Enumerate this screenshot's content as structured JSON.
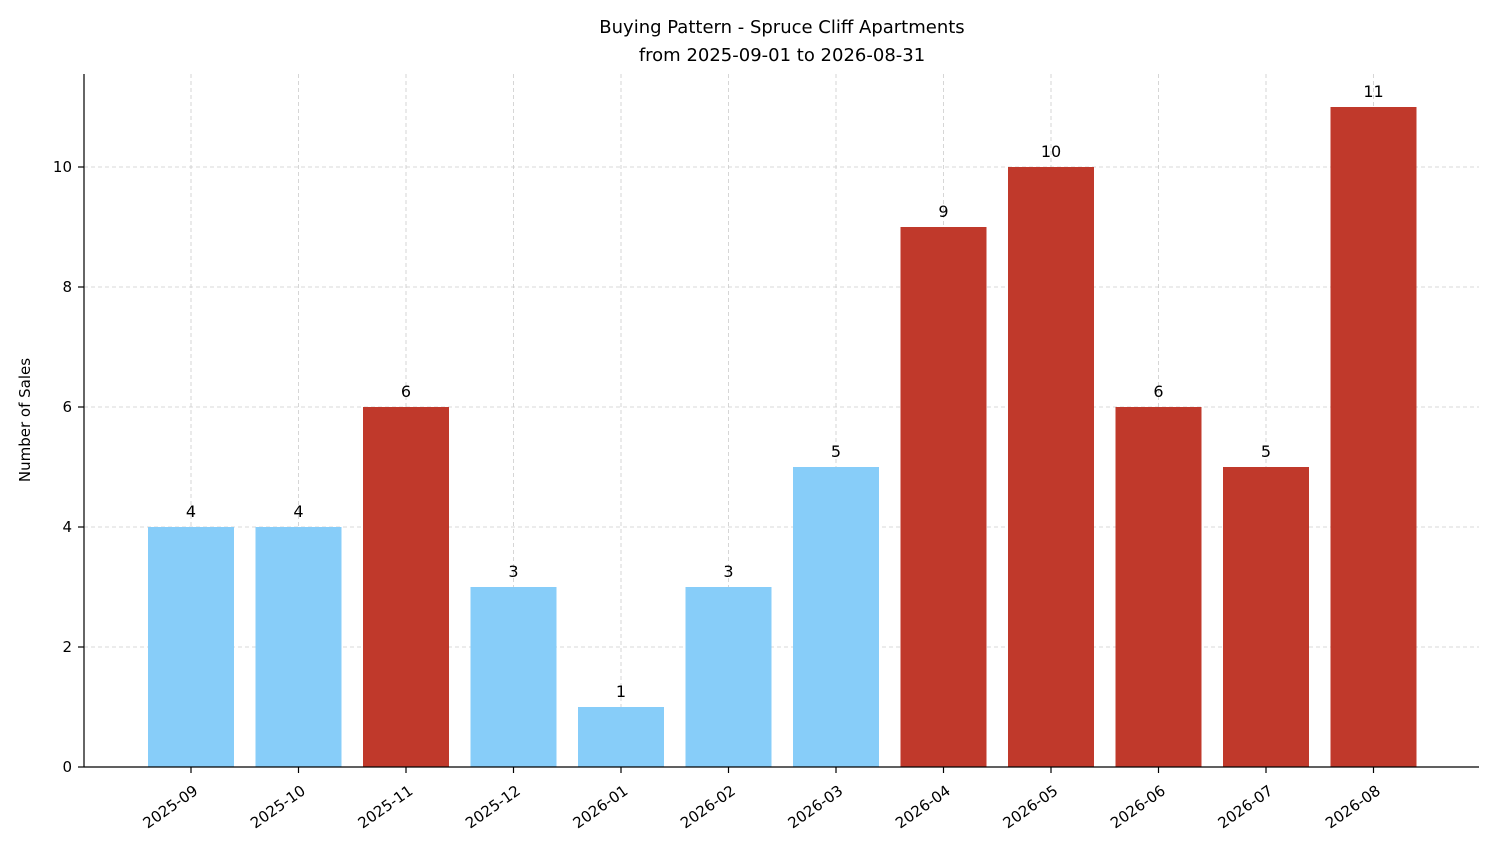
{
  "chart_data": {
    "type": "bar",
    "title": "Buying Pattern - Spruce Cliff Apartments",
    "subtitle": "from 2025-09-01 to 2026-08-31",
    "xlabel": "",
    "ylabel": "Number of Sales",
    "ylim": [
      0,
      11.55
    ],
    "yticks": [
      0,
      2,
      4,
      6,
      8,
      10
    ],
    "grid": true,
    "categories": [
      "2025-09",
      "2025-10",
      "2025-11",
      "2025-12",
      "2026-01",
      "2026-02",
      "2026-03",
      "2026-04",
      "2026-05",
      "2026-06",
      "2026-07",
      "2026-08"
    ],
    "values": [
      4,
      4,
      6,
      3,
      1,
      3,
      5,
      9,
      10,
      6,
      5,
      11
    ],
    "bar_colors": [
      "#87cdf9",
      "#87cdf9",
      "#c0392b",
      "#87cdf9",
      "#87cdf9",
      "#87cdf9",
      "#87cdf9",
      "#c0392b",
      "#c0392b",
      "#c0392b",
      "#c0392b",
      "#c0392b"
    ]
  }
}
